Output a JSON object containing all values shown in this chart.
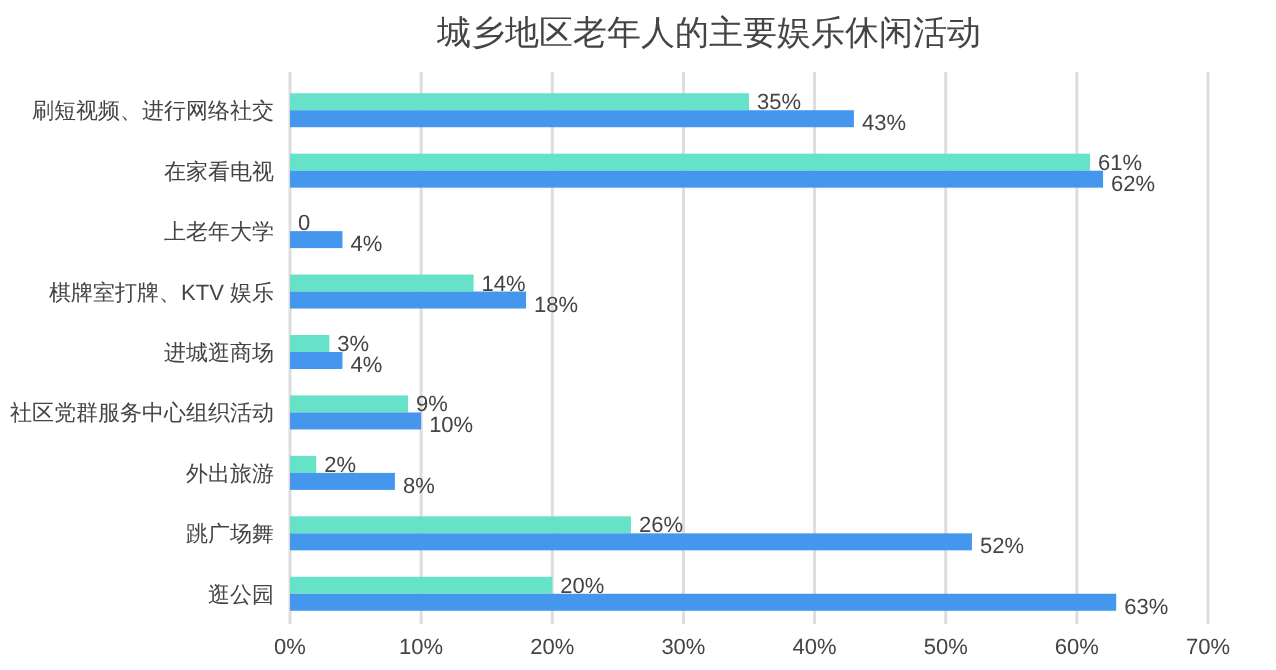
{
  "chart_data": {
    "type": "bar",
    "orientation": "horizontal",
    "title": "城乡地区老年人的主要娱乐休闲活动",
    "categories": [
      "刷短视频、进行网络社交",
      "在家看电视",
      "上老年大学",
      "棋牌室打牌、KTV 娱乐",
      "进城逛商场",
      "社区党群服务中心组织活动",
      "外出旅游",
      "跳广场舞",
      "逛公园"
    ],
    "series": [
      {
        "color": "#66e2c9",
        "values": [
          35,
          61,
          0,
          14,
          3,
          9,
          2,
          26,
          20
        ],
        "value_labels": [
          "35%",
          "61%",
          "0",
          "14%",
          "3%",
          "9%",
          "2%",
          "26%",
          "20%"
        ]
      },
      {
        "color": "#4597ee",
        "values": [
          43,
          62,
          4,
          18,
          4,
          10,
          8,
          52,
          63
        ],
        "value_labels": [
          "43%",
          "62%",
          "4%",
          "18%",
          "4%",
          "10%",
          "8%",
          "52%",
          "63%"
        ]
      }
    ],
    "xlim": [
      0,
      70
    ],
    "xticks": [
      {
        "value": 0,
        "label": "0%"
      },
      {
        "value": 10,
        "label": "10%"
      },
      {
        "value": 20,
        "label": "20%"
      },
      {
        "value": 30,
        "label": "30%"
      },
      {
        "value": 40,
        "label": "40%"
      },
      {
        "value": 50,
        "label": "50%"
      },
      {
        "value": 60,
        "label": "60%"
      },
      {
        "value": 70,
        "label": "70%"
      }
    ],
    "grid": "x"
  }
}
